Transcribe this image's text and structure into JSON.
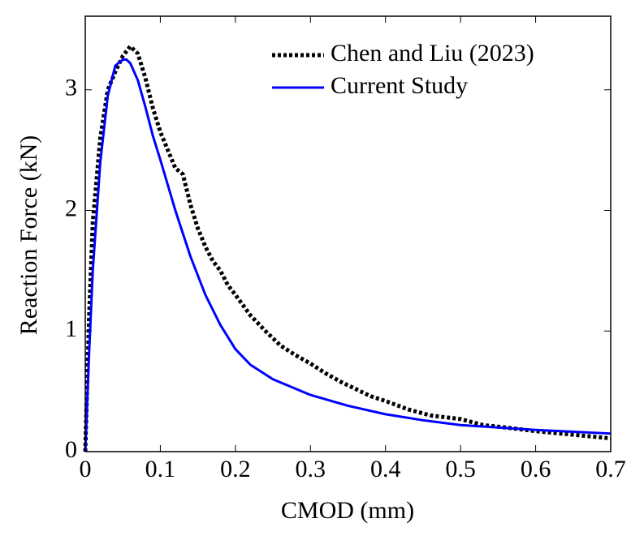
{
  "chart_data": {
    "type": "line",
    "x_label": "CMOD (mm)",
    "y_label": "Reaction Force (kN)",
    "xlim": [
      0,
      0.7
    ],
    "ylim": [
      0,
      3.61
    ],
    "xticks": [
      0,
      0.1,
      0.2,
      0.3,
      0.4,
      0.5,
      0.6,
      0.7
    ],
    "yticks": [
      0,
      1,
      2,
      3
    ],
    "legend_position": "upper right",
    "series": [
      {
        "name": "Chen and Liu (2023)",
        "color": "#000000",
        "style": "dotted",
        "x": [
          0,
          0.005,
          0.01,
          0.02,
          0.03,
          0.04,
          0.05,
          0.06,
          0.07,
          0.08,
          0.09,
          0.1,
          0.11,
          0.12,
          0.13,
          0.14,
          0.15,
          0.16,
          0.17,
          0.18,
          0.19,
          0.2,
          0.22,
          0.24,
          0.26,
          0.28,
          0.3,
          0.32,
          0.34,
          0.36,
          0.38,
          0.4,
          0.43,
          0.46,
          0.5,
          0.53,
          0.56,
          0.6,
          0.65,
          0.7
        ],
        "values": [
          0,
          1.1,
          1.9,
          2.6,
          3.0,
          3.15,
          3.28,
          3.36,
          3.3,
          3.1,
          2.85,
          2.65,
          2.5,
          2.35,
          2.3,
          2.05,
          1.85,
          1.7,
          1.58,
          1.5,
          1.38,
          1.3,
          1.13,
          1.0,
          0.88,
          0.8,
          0.73,
          0.65,
          0.58,
          0.52,
          0.46,
          0.42,
          0.35,
          0.3,
          0.27,
          0.22,
          0.2,
          0.17,
          0.14,
          0.11
        ]
      },
      {
        "name": "Current Study",
        "color": "#0000ff",
        "style": "solid",
        "x": [
          0,
          0.005,
          0.01,
          0.02,
          0.03,
          0.04,
          0.05,
          0.055,
          0.06,
          0.07,
          0.08,
          0.09,
          0.1,
          0.12,
          0.14,
          0.16,
          0.18,
          0.2,
          0.22,
          0.25,
          0.3,
          0.35,
          0.4,
          0.45,
          0.5,
          0.55,
          0.6,
          0.65,
          0.7
        ],
        "values": [
          0,
          0.8,
          1.5,
          2.4,
          2.95,
          3.2,
          3.25,
          3.25,
          3.22,
          3.08,
          2.86,
          2.62,
          2.42,
          2.0,
          1.62,
          1.3,
          1.05,
          0.85,
          0.72,
          0.6,
          0.47,
          0.38,
          0.31,
          0.26,
          0.22,
          0.2,
          0.18,
          0.165,
          0.15
        ]
      }
    ]
  }
}
